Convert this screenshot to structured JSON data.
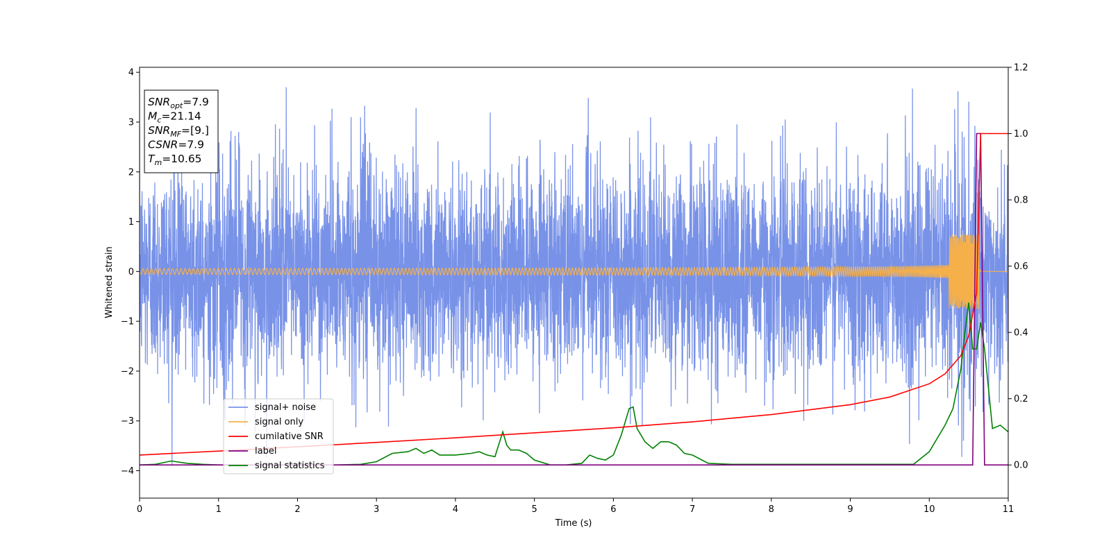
{
  "chart_data": {
    "type": "line",
    "xlabel": "Time (s)",
    "ylabel": "Whitened strain",
    "xlim": [
      0,
      11
    ],
    "ylim_left": [
      -4.55,
      4.1
    ],
    "ylim_right": [
      -0.1,
      1.2
    ],
    "xticks": [
      "0",
      "1",
      "2",
      "3",
      "4",
      "5",
      "6",
      "7",
      "8",
      "9",
      "10",
      "11"
    ],
    "yticks_left": [
      "4",
      "3",
      "2",
      "1",
      "0",
      "−1",
      "−2",
      "−3",
      "−4"
    ],
    "yticks_right": [
      "1.2",
      "1.0",
      "0.8",
      "0.6",
      "0.4",
      "0.2",
      "0.0"
    ],
    "legend_position": "lower-left",
    "annotation": {
      "lines": [
        {
          "sym": "SNR",
          "sub": "opt",
          "value": "=7.9"
        },
        {
          "sym": "M",
          "sub": "c",
          "value": "=21.14"
        },
        {
          "sym": "SNR",
          "sub": "MF",
          "value": "=[9.]"
        },
        {
          "sym": "CSNR",
          "sub": "",
          "value": "=7.9"
        },
        {
          "sym": "T",
          "sub": "m",
          "value": "=10.65"
        }
      ]
    },
    "series": [
      {
        "name": "signal+ noise",
        "axis": "left",
        "color": "#7892e8",
        "description_values": {
          "noise_std": 1.0,
          "spike_max": 3.7,
          "spike_min": -4.15
        }
      },
      {
        "name": "signal only",
        "axis": "left",
        "color": "#f5b04a",
        "chirp": {
          "merger_time": 10.65,
          "amp_at_merger": 0.75
        }
      },
      {
        "name": "cumilative SNR",
        "axis": "right",
        "color": "#ff0000",
        "x": [
          0,
          1,
          2,
          3,
          4,
          5,
          6,
          7,
          8,
          9,
          9.5,
          10,
          10.2,
          10.4,
          10.5,
          10.6,
          10.65,
          10.68,
          11
        ],
        "y": [
          0.03,
          0.042,
          0.055,
          0.068,
          0.082,
          0.097,
          0.112,
          0.13,
          0.152,
          0.182,
          0.205,
          0.245,
          0.275,
          0.33,
          0.39,
          0.52,
          1.0,
          1.0,
          1.0
        ]
      },
      {
        "name": "label",
        "axis": "right",
        "color": "#800080",
        "x": [
          0,
          10.55,
          10.6,
          10.65,
          10.7,
          11
        ],
        "y": [
          0,
          0,
          1.0,
          1.0,
          0,
          0
        ]
      },
      {
        "name": "signal statistics",
        "axis": "right",
        "color": "#008000",
        "x": [
          0,
          0.2,
          0.4,
          0.6,
          0.8,
          1.0,
          1.5,
          2.0,
          2.5,
          2.8,
          3.0,
          3.2,
          3.4,
          3.5,
          3.6,
          3.7,
          3.8,
          3.9,
          4.0,
          4.2,
          4.3,
          4.4,
          4.5,
          4.6,
          4.65,
          4.7,
          4.8,
          4.9,
          5.0,
          5.2,
          5.4,
          5.6,
          5.7,
          5.8,
          5.9,
          6.0,
          6.1,
          6.2,
          6.25,
          6.3,
          6.4,
          6.5,
          6.6,
          6.7,
          6.8,
          6.9,
          7.0,
          7.2,
          7.5,
          7.8,
          8.0,
          8.3,
          8.5,
          8.8,
          9.0,
          9.2,
          9.5,
          9.8,
          10.0,
          10.2,
          10.3,
          10.4,
          10.45,
          10.5,
          10.55,
          10.6,
          10.65,
          10.7,
          10.8,
          10.9,
          11.0
        ],
        "y": [
          0.0,
          0.002,
          0.012,
          0.005,
          0.002,
          0.0,
          0.0,
          0.0,
          0.0,
          0.002,
          0.01,
          0.035,
          0.04,
          0.05,
          0.035,
          0.045,
          0.03,
          0.03,
          0.03,
          0.035,
          0.04,
          0.03,
          0.025,
          0.1,
          0.06,
          0.045,
          0.045,
          0.035,
          0.015,
          0.0,
          0.0,
          0.005,
          0.03,
          0.02,
          0.015,
          0.03,
          0.09,
          0.17,
          0.175,
          0.11,
          0.07,
          0.05,
          0.07,
          0.07,
          0.06,
          0.035,
          0.03,
          0.005,
          0.002,
          0.002,
          0.002,
          0.002,
          0.002,
          0.002,
          0.002,
          0.002,
          0.002,
          0.002,
          0.04,
          0.12,
          0.17,
          0.29,
          0.4,
          0.49,
          0.35,
          0.35,
          0.43,
          0.35,
          0.11,
          0.12,
          0.1
        ]
      }
    ]
  }
}
